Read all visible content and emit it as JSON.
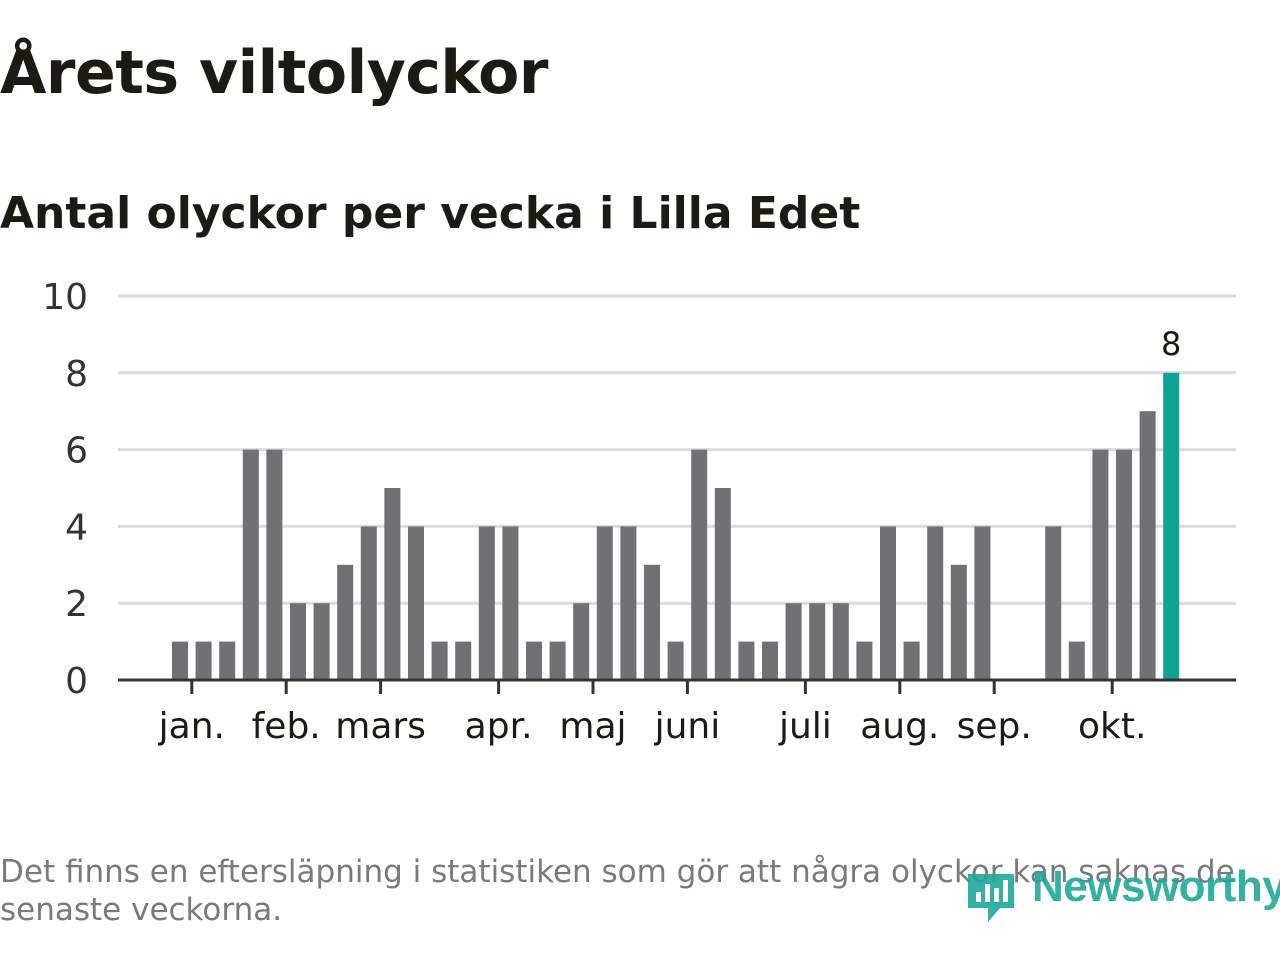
{
  "title": "Årets viltolyckor",
  "subtitle": "Antal olyckor per vecka i Lilla Edet",
  "footnote": "Det finns en eftersläpning i statistiken som gör att några olyckor kan saknas de senaste veckorna.",
  "logo": {
    "text": "Newsworthy",
    "icon": "newsworthy-logo-icon",
    "color": "#1ea99a"
  },
  "chart_data": {
    "type": "bar",
    "ylim": [
      0,
      10
    ],
    "yticks": [
      0,
      2,
      4,
      6,
      8,
      10
    ],
    "grid": true,
    "bar_color": "#707075",
    "highlight_color": "#0fa396",
    "values": [
      1,
      1,
      1,
      6,
      6,
      2,
      2,
      3,
      4,
      5,
      4,
      1,
      1,
      4,
      4,
      1,
      1,
      2,
      4,
      4,
      3,
      1,
      6,
      5,
      1,
      1,
      2,
      2,
      2,
      1,
      4,
      1,
      4,
      3,
      4,
      0,
      0,
      4,
      1,
      6,
      6,
      7,
      8
    ],
    "highlight_index": 42,
    "data_labels": [
      {
        "index": 42,
        "text": "8"
      }
    ],
    "month_ticks": [
      {
        "label": "jan.",
        "index": 0.5
      },
      {
        "label": "feb.",
        "index": 4.5
      },
      {
        "label": "mars",
        "index": 8.5
      },
      {
        "label": "apr.",
        "index": 13.5
      },
      {
        "label": "maj",
        "index": 17.5
      },
      {
        "label": "juni",
        "index": 21.5
      },
      {
        "label": "juli",
        "index": 26.5
      },
      {
        "label": "aug.",
        "index": 30.5
      },
      {
        "label": "sep.",
        "index": 34.5
      },
      {
        "label": "okt.",
        "index": 39.5
      }
    ]
  }
}
